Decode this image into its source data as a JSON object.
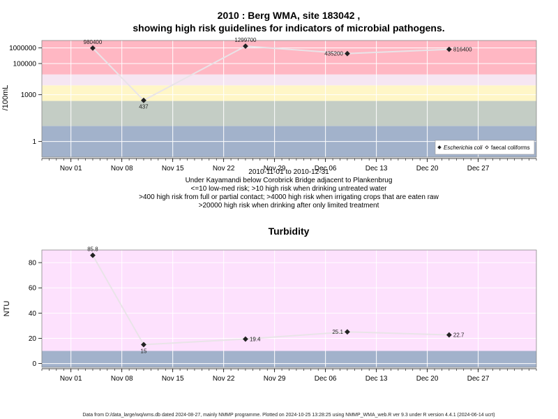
{
  "chart_data": [
    {
      "type": "line",
      "title_line1": "2010 : Berg WMA, site 183042 ,",
      "title_line2": "showing high risk guidelines for indicators of microbial pathogens.",
      "ylabel": "/100mL",
      "yscale": "log",
      "ylim": [
        0.1,
        3000000
      ],
      "xlim": [
        "2010-10-28",
        "2011-01-04"
      ],
      "y_ticks": [
        {
          "value": 1,
          "label": "1"
        },
        {
          "value": 1000,
          "label": "1000"
        },
        {
          "value": 100000,
          "label": "100000"
        },
        {
          "value": 1000000,
          "label": "1000000"
        }
      ],
      "x_ticks": [
        {
          "date": "2010-11-01",
          "label": "Nov 01"
        },
        {
          "date": "2010-11-08",
          "label": "Nov 08"
        },
        {
          "date": "2010-11-15",
          "label": "Nov 15"
        },
        {
          "date": "2010-11-22",
          "label": "Nov 22"
        },
        {
          "date": "2010-11-29",
          "label": "Nov 29"
        },
        {
          "date": "2010-12-06",
          "label": "Dec 06"
        },
        {
          "date": "2010-12-13",
          "label": "Dec 13"
        },
        {
          "date": "2010-12-20",
          "label": "Dec 20"
        },
        {
          "date": "2010-12-27",
          "label": "Dec 27"
        }
      ],
      "bands": [
        {
          "from": 0.1,
          "to": 10,
          "color": "#a2b2cb"
        },
        {
          "from": 10,
          "to": 400,
          "color": "#c4cdc5"
        },
        {
          "from": 400,
          "to": 4000,
          "color": "#fff6c7"
        },
        {
          "from": 4000,
          "to": 20000,
          "color": "#f6e6f2"
        },
        {
          "from": 20000,
          "to": 3000000,
          "color": "#ffb7c3"
        }
      ],
      "series": [
        {
          "name": "Escherichia coli",
          "points": [
            {
              "date": "2010-11-04",
              "value": 980400,
              "label": "980400"
            },
            {
              "date": "2010-11-11",
              "value": 437,
              "label": "437"
            },
            {
              "date": "2010-11-25",
              "value": 1299700,
              "label": "1299700"
            },
            {
              "date": "2010-12-09",
              "value": 435200,
              "label": "435200"
            },
            {
              "date": "2010-12-23",
              "value": 816400,
              "label": "816400"
            }
          ]
        }
      ],
      "legend": {
        "placement": "bottom-right",
        "entries": [
          {
            "label": "Escherichia coli",
            "marker": "filled-diamond"
          },
          {
            "label": "faecal coliforms",
            "marker": "open-diamond"
          }
        ]
      },
      "notes": [
        "2010-11-01 to 2010-12-31",
        "Under Kayamandi below Corobrick Bridge adjacent to Plankenbrug",
        "<=10 low-med risk; >10 high risk when drinking untreated water",
        ">400 high risk from full or partial contact; >4000 high risk when irrigating crops that are eaten raw",
        ">20000 high risk when drinking after only limited treatment"
      ]
    },
    {
      "type": "line",
      "title": "Turbidity",
      "ylabel": "NTU",
      "ylim": [
        -3,
        90
      ],
      "xlim": [
        "2010-10-28",
        "2011-01-04"
      ],
      "y_ticks": [
        {
          "value": 0,
          "label": "0"
        },
        {
          "value": 20,
          "label": "20"
        },
        {
          "value": 40,
          "label": "40"
        },
        {
          "value": 60,
          "label": "60"
        },
        {
          "value": 80,
          "label": "80"
        }
      ],
      "x_ticks": [
        {
          "date": "2010-11-01",
          "label": "Nov 01"
        },
        {
          "date": "2010-11-08",
          "label": "Nov 08"
        },
        {
          "date": "2010-11-15",
          "label": "Nov 15"
        },
        {
          "date": "2010-11-22",
          "label": "Nov 22"
        },
        {
          "date": "2010-11-29",
          "label": "Nov 29"
        },
        {
          "date": "2010-12-06",
          "label": "Dec 06"
        },
        {
          "date": "2010-12-13",
          "label": "Dec 13"
        },
        {
          "date": "2010-12-20",
          "label": "Dec 20"
        },
        {
          "date": "2010-12-27",
          "label": "Dec 27"
        }
      ],
      "bands": [
        {
          "from": -3,
          "to": 10,
          "color": "#a2b2cb"
        },
        {
          "from": 10,
          "to": 90,
          "color": "#fde1fd"
        }
      ],
      "series": [
        {
          "points": [
            {
              "date": "2010-11-04",
              "value": 85.8,
              "label": "85.8"
            },
            {
              "date": "2010-11-11",
              "value": 15,
              "label": "15"
            },
            {
              "date": "2010-11-25",
              "value": 19.4,
              "label": "19.4"
            },
            {
              "date": "2010-12-09",
              "value": 25.1,
              "label": "25.1"
            },
            {
              "date": "2010-12-23",
              "value": 22.7,
              "label": "22.7"
            }
          ]
        }
      ]
    }
  ],
  "footer": "Data from D:/data_large/wq/wms.db dated 2024-08-27, mainly NMMP programme. Plotted on 2024-10-25 13:28:25 using NMMP_WMA_web.R ver 9.3 under R version 4.4.1 (2024-06-14 ucrt)"
}
